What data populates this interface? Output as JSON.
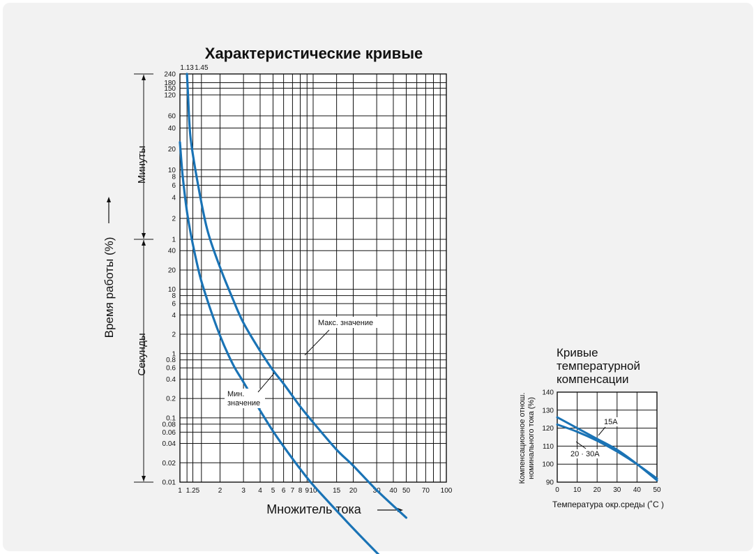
{
  "chart_data": [
    {
      "type": "line",
      "title": "Характеристические кривые",
      "xlabel": "Множитель тока",
      "ylabel": "Время работы (%)",
      "x_scale": "log",
      "y_scale": "log",
      "xlim": [
        1,
        100
      ],
      "x_ticks": [
        1,
        1.25,
        2,
        3,
        4,
        5,
        6,
        7,
        8,
        9,
        10,
        15,
        20,
        30,
        40,
        50,
        70,
        100
      ],
      "x_tick_labels": [
        "1",
        "1.25",
        "2",
        "3",
        "4",
        "5",
        "6",
        "7",
        "8",
        "9",
        "10",
        "15",
        "20",
        "30",
        "40",
        "50",
        "70",
        "100"
      ],
      "top_tick_labels": [
        "1.13",
        "1.45"
      ],
      "top_ticks": [
        1.13,
        1.45
      ],
      "y_sections": [
        {
          "label": "Минуты",
          "unit": "minutes",
          "ticks": [
            1,
            2,
            4,
            6,
            8,
            10,
            20,
            40,
            60,
            120,
            150,
            180,
            240
          ],
          "tick_labels": [
            "1",
            "2",
            "4",
            "6",
            "8",
            "10",
            "20",
            "40",
            "60",
            "120",
            "150",
            "180",
            "240"
          ]
        },
        {
          "label": "Секунды",
          "unit": "seconds",
          "ticks": [
            0.01,
            0.02,
            0.04,
            0.06,
            0.08,
            0.1,
            0.2,
            0.4,
            0.6,
            0.8,
            1,
            2,
            4,
            6,
            8,
            10,
            20,
            40
          ],
          "tick_labels": [
            "0.01",
            "0.02",
            "0.04",
            "0.06",
            "0.08",
            "0.1",
            "0.2",
            "0.4",
            "0.6",
            "0.8",
            "1",
            "2",
            "4",
            "6",
            "8",
            "10",
            "20",
            "40"
          ]
        }
      ],
      "series": [
        {
          "name": "Мин. значение",
          "color": "#1a73b5",
          "points_seconds": [
            [
              1.0,
              1500
            ],
            [
              1.05,
              480
            ],
            [
              1.15,
              120
            ],
            [
              1.35,
              24
            ],
            [
              1.55,
              8.5
            ],
            [
              2.0,
              1.9
            ],
            [
              2.5,
              0.68
            ],
            [
              3.0,
              0.36
            ],
            [
              4.0,
              0.13
            ],
            [
              5.0,
              0.062
            ],
            [
              6.0,
              0.036
            ],
            [
              8.0,
              0.016
            ],
            [
              10.0,
              0.009
            ],
            [
              15.0,
              0.0036
            ],
            [
              20.0,
              0.0019
            ],
            [
              30.0,
              0.0008
            ],
            [
              42.0,
              0.0004
            ]
          ]
        },
        {
          "name": "Макс. значение",
          "color": "#1a73b5",
          "points_seconds": [
            [
              1.13,
              14400
            ],
            [
              1.15,
              7200
            ],
            [
              1.2,
              1800
            ],
            [
              1.35,
              420
            ],
            [
              1.6,
              84
            ],
            [
              2.0,
              22
            ],
            [
              2.5,
              7
            ],
            [
              3.0,
              3
            ],
            [
              4.0,
              1.1
            ],
            [
              5.0,
              0.55
            ],
            [
              6.0,
              0.34
            ],
            [
              8.0,
              0.15
            ],
            [
              10.0,
              0.085
            ],
            [
              15.0,
              0.032
            ],
            [
              20.0,
              0.018
            ],
            [
              30.0,
              0.0075
            ],
            [
              50.0,
              0.0028
            ]
          ]
        }
      ],
      "annotations": [
        {
          "text": "Макс. значение",
          "target": [
            10,
            0.09
          ]
        },
        {
          "text": "Мин.",
          "target": [
            6,
            0.04
          ]
        },
        {
          "text": "значение",
          "target": [
            6,
            0.04
          ]
        }
      ]
    },
    {
      "type": "line",
      "title": [
        "Кривые",
        "температурной",
        "компенсации"
      ],
      "xlabel": "Температура окр.среды (˚C )",
      "ylabel": [
        "Компенсационное отнош.",
        "номинального тока (%)"
      ],
      "xlim": [
        0,
        50
      ],
      "ylim": [
        90,
        140
      ],
      "x_ticks": [
        0,
        10,
        20,
        30,
        40,
        50
      ],
      "y_ticks": [
        90,
        100,
        110,
        120,
        130,
        140
      ],
      "grid": true,
      "series": [
        {
          "name": "15A",
          "color": "#1a73b5",
          "x": [
            0,
            10,
            20,
            30,
            40,
            50
          ],
          "y": [
            126,
            120,
            114,
            108,
            100,
            91
          ]
        },
        {
          "name": "20 · 30A",
          "color": "#1a73b5",
          "x": [
            0,
            10,
            20,
            30,
            40,
            50
          ],
          "y": [
            122,
            118,
            113,
            107,
            100,
            92
          ]
        }
      ]
    }
  ]
}
